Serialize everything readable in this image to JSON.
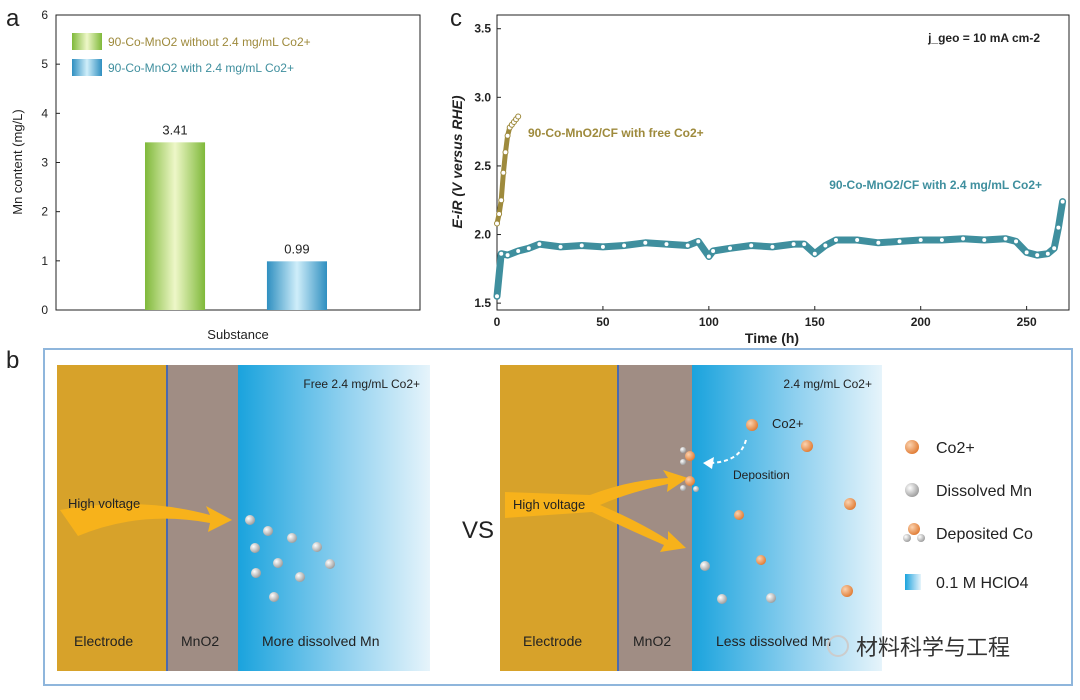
{
  "chart_data": [
    {
      "panel": "a",
      "type": "bar",
      "xlabel": "Substance",
      "ylabel": "Mn content  (mg/L)",
      "ylim": [
        0,
        6
      ],
      "yticks": [
        "0",
        "1",
        "2",
        "3",
        "4",
        "5",
        "6"
      ],
      "legend_position": "top-left",
      "series": [
        {
          "name": "90-Co-MnO2 without 2.4 mg/mL Co2+",
          "value": 3.41,
          "label": "3.41",
          "color": "#8cc63f"
        },
        {
          "name": "90-Co-MnO2 with 2.4 mg/mL Co2+",
          "value": 0.99,
          "label": "0.99",
          "color": "#3a9fcf"
        }
      ]
    },
    {
      "panel": "c",
      "type": "line",
      "xlabel": "Time (h)",
      "ylabel": "E-iR (V versus RHE)",
      "xlim": [
        0,
        270
      ],
      "ylim": [
        1.45,
        3.6
      ],
      "xticks": [
        0,
        50,
        100,
        150,
        200,
        250
      ],
      "yticks": [
        1.5,
        2.0,
        2.5,
        3.0,
        3.5
      ],
      "annotation": "j_geo = 10 mA cm-2",
      "series": [
        {
          "name": "90-Co-MnO2/CF with free Co2+",
          "color": "#9e8a3c",
          "x": [
            0,
            1,
            2,
            3,
            4,
            5,
            6,
            7,
            8,
            9,
            10
          ],
          "y": [
            2.08,
            2.15,
            2.25,
            2.45,
            2.6,
            2.72,
            2.78,
            2.8,
            2.82,
            2.84,
            2.86
          ]
        },
        {
          "name": "90-Co-MnO2/CF with 2.4 mg/mL Co2+",
          "color": "#3f8f9e",
          "x": [
            0,
            2,
            5,
            10,
            15,
            20,
            30,
            40,
            50,
            60,
            70,
            80,
            90,
            95,
            100,
            102,
            110,
            120,
            130,
            140,
            145,
            150,
            155,
            160,
            170,
            180,
            190,
            200,
            210,
            220,
            230,
            240,
            245,
            250,
            255,
            260,
            263,
            265,
            267
          ],
          "y": [
            1.55,
            1.86,
            1.85,
            1.88,
            1.9,
            1.93,
            1.91,
            1.92,
            1.91,
            1.92,
            1.94,
            1.93,
            1.92,
            1.95,
            1.84,
            1.88,
            1.9,
            1.92,
            1.91,
            1.93,
            1.93,
            1.86,
            1.92,
            1.96,
            1.96,
            1.94,
            1.95,
            1.96,
            1.96,
            1.97,
            1.96,
            1.97,
            1.95,
            1.87,
            1.85,
            1.86,
            1.9,
            2.05,
            2.24
          ]
        }
      ]
    }
  ],
  "labels": {
    "a": "a",
    "b": "b",
    "c": "c"
  },
  "schematic": {
    "vs": "VS",
    "left": {
      "electrode": "Electrode",
      "mno2": "MnO2",
      "solution": "Free 2.4 mg/mL Co2+",
      "arrow": "High voltage",
      "bottom": "More dissolved Mn"
    },
    "right": {
      "electrode": "Electrode",
      "mno2": "MnO2",
      "solution": "2.4 mg/mL Co2+",
      "ion": "Co2+",
      "deposition": "Deposition",
      "arrow": "High voltage",
      "bottom": "Less dissolved Mn"
    },
    "legend": [
      "Co2+",
      "Dissolved Mn",
      "Deposited Co",
      "0.1 M HClO4"
    ]
  },
  "watermark": "材料科学与工程"
}
